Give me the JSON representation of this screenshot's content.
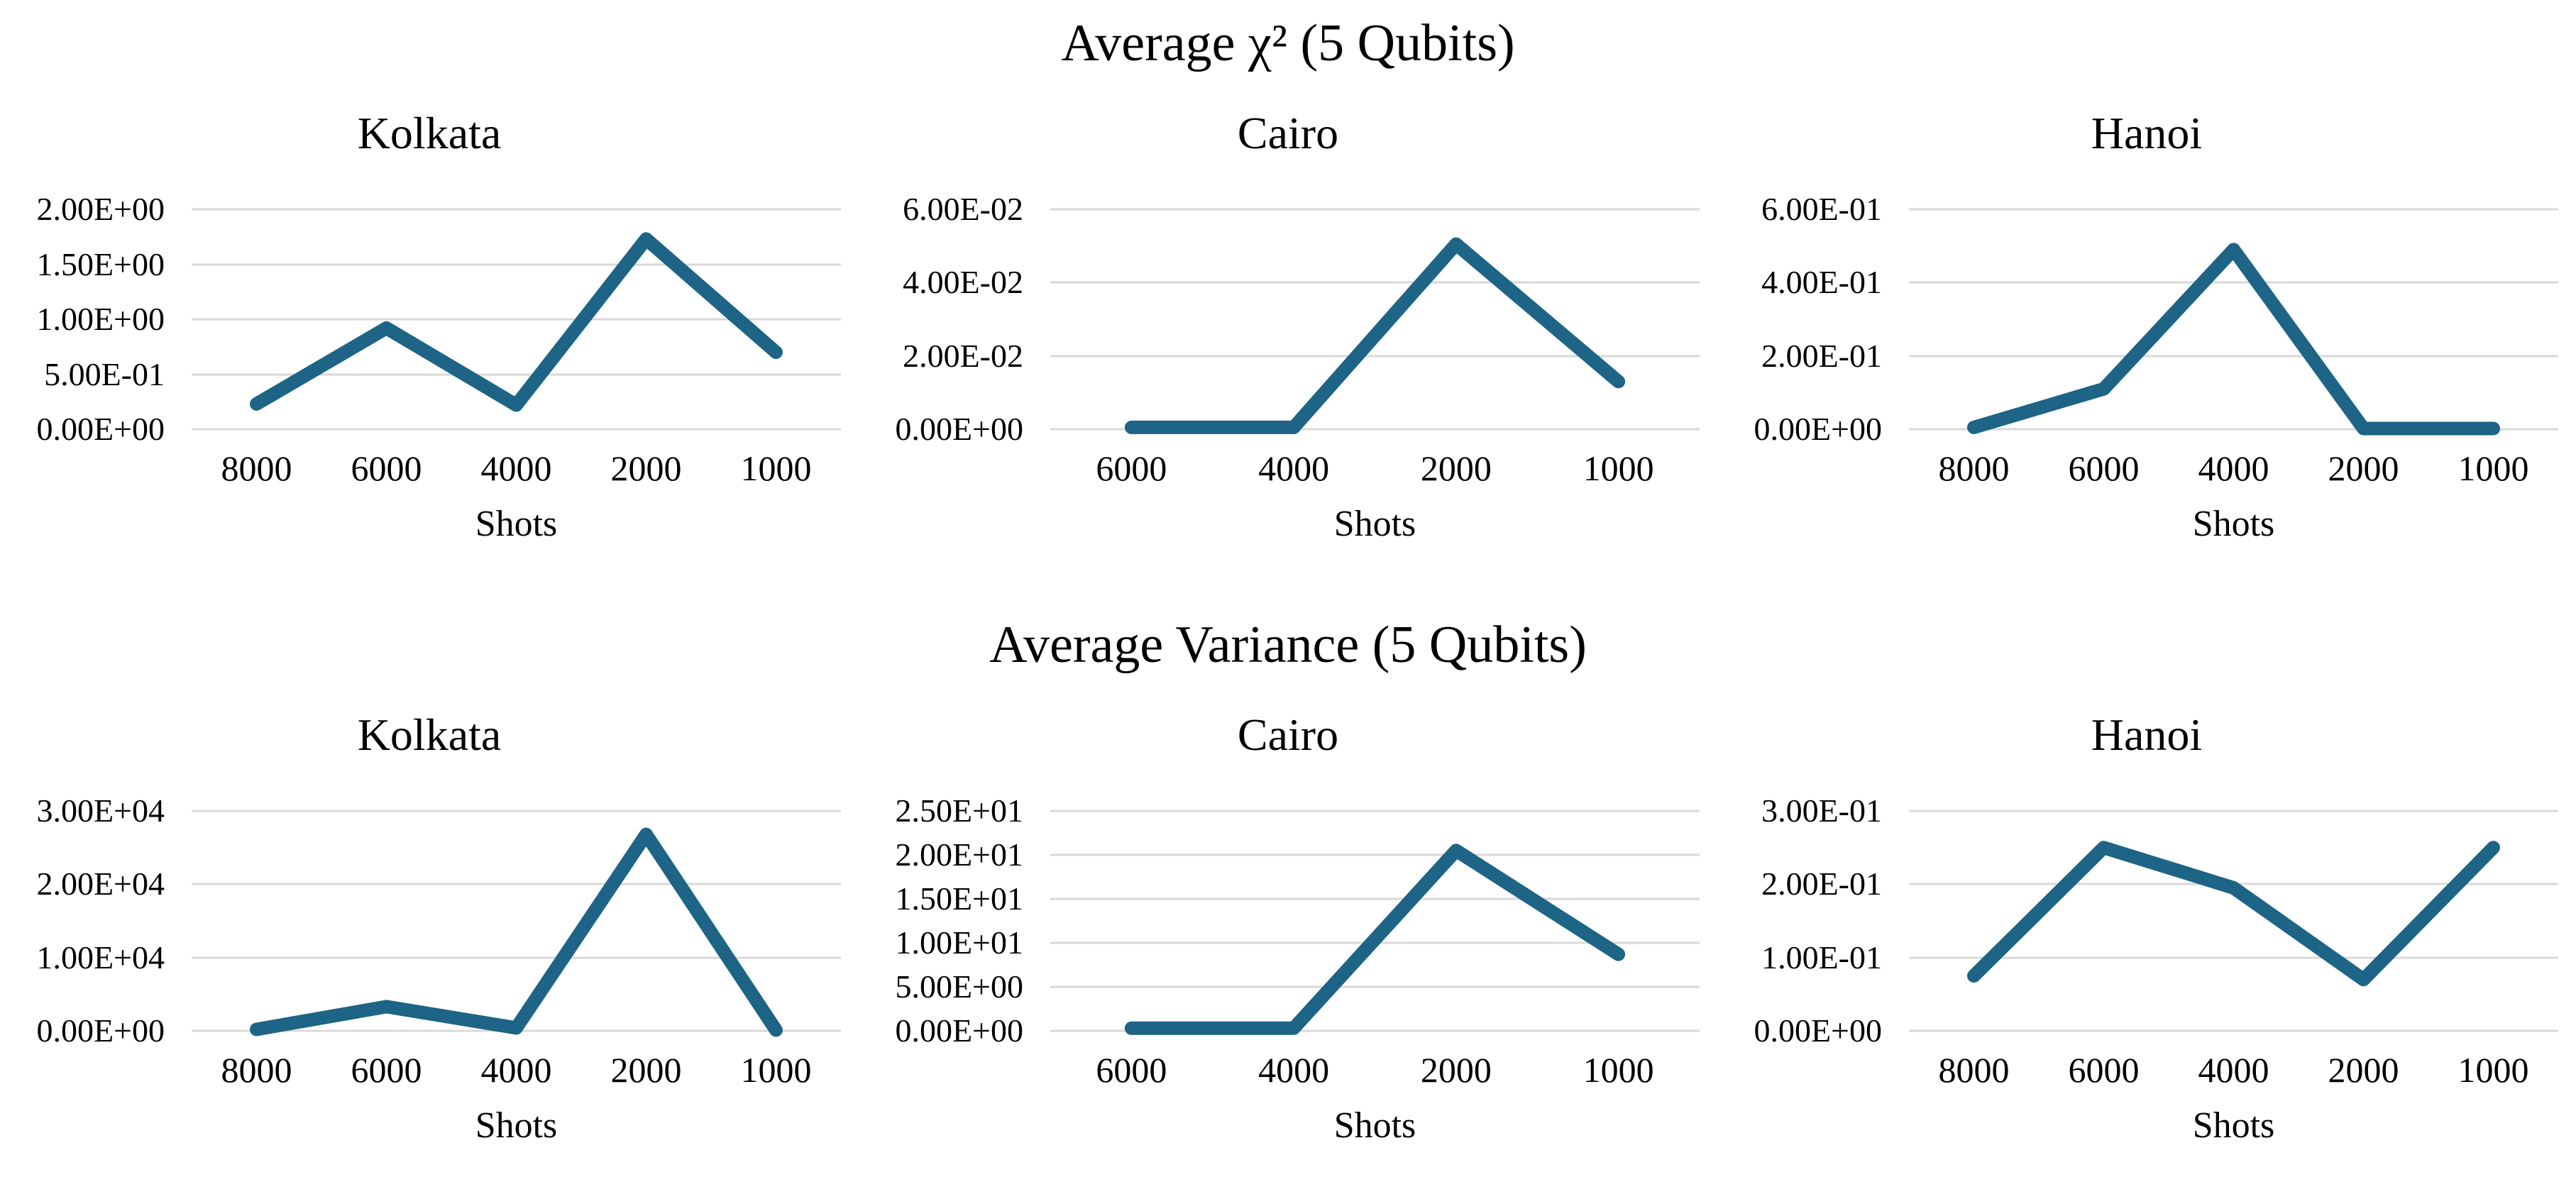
{
  "colors": {
    "line": "#1d6486",
    "gridline": "#d9d9d9",
    "text": "#000000",
    "background": "#ffffff"
  },
  "sections": [
    {
      "title": "Average χ² (5 Qubits)",
      "chart_indexes": [
        0,
        1,
        2
      ]
    },
    {
      "title": "Average Variance (5 Qubits)",
      "chart_indexes": [
        3,
        4,
        5
      ]
    }
  ],
  "chart_data": [
    {
      "type": "line",
      "group": "Average χ² (5 Qubits)",
      "title": "Kolkata",
      "xlabel": "Shots",
      "categories": [
        "8000",
        "6000",
        "4000",
        "2000",
        "1000"
      ],
      "values": [
        0.23,
        0.92,
        0.22,
        1.73,
        0.7
      ],
      "ylim": [
        0,
        2.0
      ],
      "y_ticks": [
        "2.00E+00",
        "1.50E+00",
        "1.00E+00",
        "5.00E-01",
        "0.00E+00"
      ],
      "grid": true,
      "legend": false
    },
    {
      "type": "line",
      "group": "Average χ² (5 Qubits)",
      "title": "Cairo",
      "xlabel": "Shots",
      "categories": [
        "6000",
        "4000",
        "2000",
        "1000"
      ],
      "values": [
        0.0005,
        0.0005,
        0.0505,
        0.013
      ],
      "ylim": [
        0,
        0.06
      ],
      "y_ticks": [
        "6.00E-02",
        "4.00E-02",
        "2.00E-02",
        "0.00E+00"
      ],
      "grid": true,
      "legend": false
    },
    {
      "type": "line",
      "group": "Average χ² (5 Qubits)",
      "title": "Hanoi",
      "xlabel": "Shots",
      "categories": [
        "8000",
        "6000",
        "4000",
        "2000",
        "1000"
      ],
      "values": [
        0.005,
        0.11,
        0.49,
        0.002,
        0.002
      ],
      "ylim": [
        0,
        0.6
      ],
      "y_ticks": [
        "6.00E-01",
        "4.00E-01",
        "2.00E-01",
        "0.00E+00"
      ],
      "grid": true,
      "legend": false
    },
    {
      "type": "line",
      "group": "Average Variance (5 Qubits)",
      "title": "Kolkata",
      "xlabel": "Shots",
      "categories": [
        "8000",
        "6000",
        "4000",
        "2000",
        "1000"
      ],
      "values": [
        200,
        3300,
        400,
        26800,
        100
      ],
      "ylim": [
        0,
        30000
      ],
      "y_ticks": [
        "3.00E+04",
        "2.00E+04",
        "1.00E+04",
        "0.00E+00"
      ],
      "grid": true,
      "legend": false
    },
    {
      "type": "line",
      "group": "Average Variance (5 Qubits)",
      "title": "Cairo",
      "xlabel": "Shots",
      "categories": [
        "6000",
        "4000",
        "2000",
        "1000"
      ],
      "values": [
        0.3,
        0.3,
        20.5,
        8.7
      ],
      "ylim": [
        0,
        25
      ],
      "y_ticks": [
        "2.50E+01",
        "2.00E+01",
        "1.50E+01",
        "1.00E+01",
        "5.00E+00",
        "0.00E+00"
      ],
      "grid": true,
      "legend": false
    },
    {
      "type": "line",
      "group": "Average Variance (5 Qubits)",
      "title": "Hanoi",
      "xlabel": "Shots",
      "categories": [
        "8000",
        "6000",
        "4000",
        "2000",
        "1000"
      ],
      "values": [
        0.075,
        0.25,
        0.195,
        0.07,
        0.25
      ],
      "ylim": [
        0,
        0.3
      ],
      "y_ticks": [
        "3.00E-01",
        "2.00E-01",
        "1.00E-01",
        "0.00E+00"
      ],
      "grid": true,
      "legend": false
    }
  ]
}
